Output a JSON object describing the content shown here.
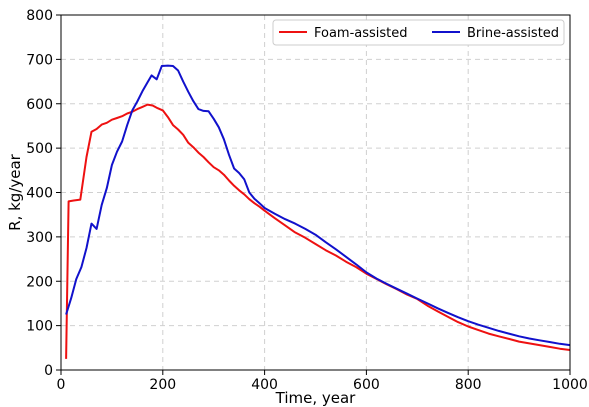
{
  "chart_data": {
    "type": "line",
    "xlabel": "Time, year",
    "ylabel": "R, kg/year",
    "xlim": [
      0,
      1000
    ],
    "ylim": [
      0,
      800
    ],
    "xticks": [
      0,
      200,
      400,
      600,
      800,
      1000
    ],
    "yticks": [
      0,
      100,
      200,
      300,
      400,
      500,
      600,
      700,
      800
    ],
    "grid": true,
    "grid_style": "dashed",
    "legend_position": "top-right",
    "legend_columns": 2,
    "series": [
      {
        "name": "Foam-assisted",
        "color": "#ee1111",
        "points": [
          [
            10,
            25
          ],
          [
            15,
            380
          ],
          [
            25,
            382
          ],
          [
            38,
            384
          ],
          [
            50,
            480
          ],
          [
            60,
            537
          ],
          [
            70,
            543
          ],
          [
            80,
            553
          ],
          [
            90,
            557
          ],
          [
            100,
            564
          ],
          [
            110,
            568
          ],
          [
            120,
            572
          ],
          [
            130,
            578
          ],
          [
            140,
            582
          ],
          [
            150,
            588
          ],
          [
            160,
            593
          ],
          [
            170,
            598
          ],
          [
            180,
            596
          ],
          [
            190,
            590
          ],
          [
            200,
            585
          ],
          [
            210,
            570
          ],
          [
            220,
            552
          ],
          [
            230,
            542
          ],
          [
            240,
            530
          ],
          [
            250,
            512
          ],
          [
            260,
            502
          ],
          [
            270,
            490
          ],
          [
            280,
            480
          ],
          [
            290,
            468
          ],
          [
            300,
            457
          ],
          [
            310,
            450
          ],
          [
            320,
            440
          ],
          [
            330,
            427
          ],
          [
            340,
            415
          ],
          [
            350,
            405
          ],
          [
            360,
            396
          ],
          [
            370,
            385
          ],
          [
            380,
            376
          ],
          [
            390,
            368
          ],
          [
            400,
            359
          ],
          [
            420,
            342
          ],
          [
            440,
            326
          ],
          [
            460,
            310
          ],
          [
            480,
            298
          ],
          [
            500,
            284
          ],
          [
            520,
            270
          ],
          [
            540,
            258
          ],
          [
            560,
            244
          ],
          [
            580,
            232
          ],
          [
            600,
            217
          ],
          [
            620,
            205
          ],
          [
            640,
            193
          ],
          [
            660,
            182
          ],
          [
            680,
            170
          ],
          [
            700,
            160
          ],
          [
            720,
            145
          ],
          [
            740,
            132
          ],
          [
            760,
            120
          ],
          [
            780,
            108
          ],
          [
            800,
            98
          ],
          [
            820,
            90
          ],
          [
            840,
            82
          ],
          [
            860,
            76
          ],
          [
            880,
            70
          ],
          [
            900,
            64
          ],
          [
            920,
            60
          ],
          [
            940,
            56
          ],
          [
            960,
            52
          ],
          [
            980,
            48
          ],
          [
            1000,
            45
          ]
        ]
      },
      {
        "name": "Brine-assisted",
        "color": "#1111cc",
        "points": [
          [
            10,
            125
          ],
          [
            20,
            162
          ],
          [
            30,
            205
          ],
          [
            40,
            232
          ],
          [
            50,
            275
          ],
          [
            60,
            330
          ],
          [
            70,
            318
          ],
          [
            80,
            372
          ],
          [
            90,
            410
          ],
          [
            100,
            462
          ],
          [
            110,
            492
          ],
          [
            120,
            515
          ],
          [
            130,
            552
          ],
          [
            140,
            585
          ],
          [
            150,
            605
          ],
          [
            160,
            628
          ],
          [
            170,
            648
          ],
          [
            178,
            664
          ],
          [
            188,
            655
          ],
          [
            198,
            685
          ],
          [
            210,
            686
          ],
          [
            220,
            685
          ],
          [
            230,
            675
          ],
          [
            240,
            650
          ],
          [
            250,
            627
          ],
          [
            260,
            606
          ],
          [
            270,
            588
          ],
          [
            280,
            584
          ],
          [
            290,
            583
          ],
          [
            300,
            566
          ],
          [
            310,
            547
          ],
          [
            320,
            520
          ],
          [
            330,
            485
          ],
          [
            340,
            454
          ],
          [
            350,
            444
          ],
          [
            360,
            430
          ],
          [
            370,
            400
          ],
          [
            380,
            386
          ],
          [
            390,
            376
          ],
          [
            400,
            365
          ],
          [
            420,
            352
          ],
          [
            440,
            340
          ],
          [
            460,
            330
          ],
          [
            480,
            318
          ],
          [
            500,
            305
          ],
          [
            520,
            288
          ],
          [
            540,
            272
          ],
          [
            560,
            255
          ],
          [
            580,
            238
          ],
          [
            600,
            220
          ],
          [
            620,
            206
          ],
          [
            640,
            194
          ],
          [
            660,
            183
          ],
          [
            680,
            172
          ],
          [
            700,
            161
          ],
          [
            720,
            150
          ],
          [
            740,
            139
          ],
          [
            760,
            129
          ],
          [
            780,
            119
          ],
          [
            800,
            110
          ],
          [
            820,
            102
          ],
          [
            840,
            95
          ],
          [
            860,
            88
          ],
          [
            880,
            82
          ],
          [
            900,
            76
          ],
          [
            920,
            71
          ],
          [
            940,
            67
          ],
          [
            960,
            63
          ],
          [
            980,
            59
          ],
          [
            1000,
            56
          ]
        ]
      }
    ]
  }
}
